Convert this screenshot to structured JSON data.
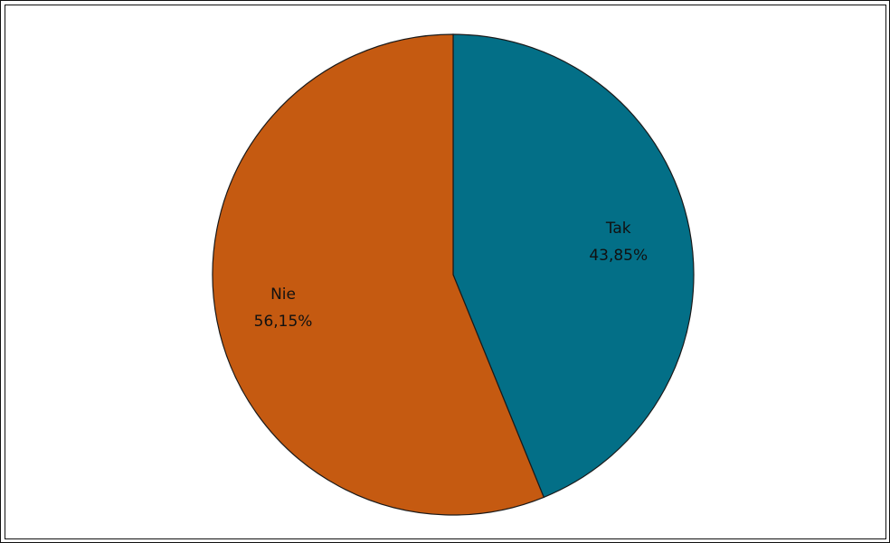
{
  "chart_data": {
    "type": "pie",
    "title": "",
    "categories": [
      "Tak",
      "Nie"
    ],
    "values": [
      43.85,
      56.15
    ],
    "value_labels": [
      "43,85%",
      "56,15%"
    ],
    "colors": [
      "#036F87",
      "#C55A11"
    ],
    "start_angle": "12 o'clock",
    "direction": "clockwise",
    "legend": "none"
  }
}
